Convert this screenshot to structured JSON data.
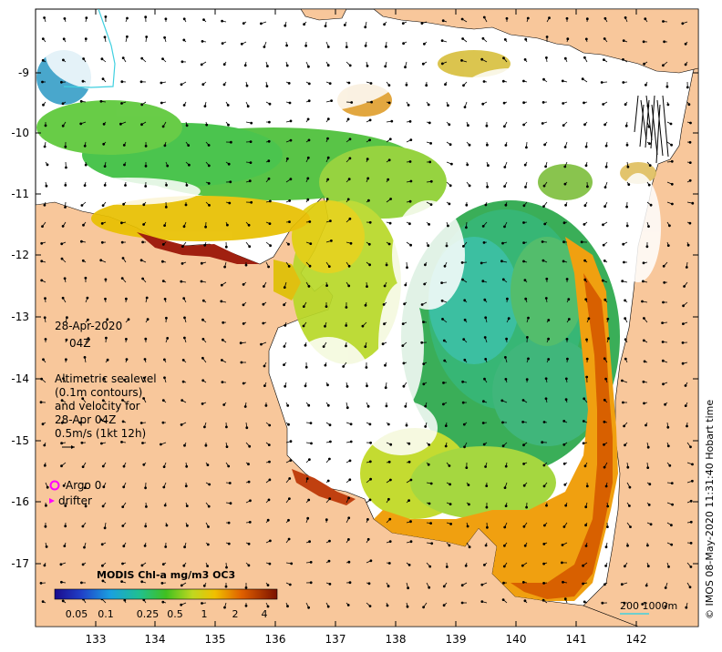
{
  "map": {
    "x_ticks": [
      "133",
      "134",
      "135",
      "136",
      "137",
      "138",
      "139",
      "140",
      "141",
      "142"
    ],
    "y_ticks": [
      "-9",
      "-10",
      "-11",
      "-12",
      "-13",
      "-14",
      "-15",
      "-16",
      "-17"
    ],
    "land_color": "#f8c79b",
    "water_color": "#ffffff"
  },
  "date": {
    "day": "28-Apr-2020",
    "hour": "04Z"
  },
  "sealevel_note": {
    "line1": "Altimetric sealevel",
    "line2": "(0.1m contours)",
    "line3": "and velocity for",
    "line4": "28-Apr 04Z",
    "line5": "0.5m/s (1kt 12h)"
  },
  "legend": {
    "argo_label": "Argo 0",
    "drifter_label": "drifter",
    "argo_color": "#ff00ff",
    "drifter_color": "#ff00ff"
  },
  "colorbar": {
    "title": "MODIS Chl-a mg/m3 OC3",
    "ticks": [
      "0.05",
      "0.1",
      "0.25",
      "0.5",
      "1",
      "2",
      "4"
    ]
  },
  "scale_bar": {
    "label": "200  1000m"
  },
  "credit": "© IMOS 08-May-2020 11:31:40 Hobart time"
}
